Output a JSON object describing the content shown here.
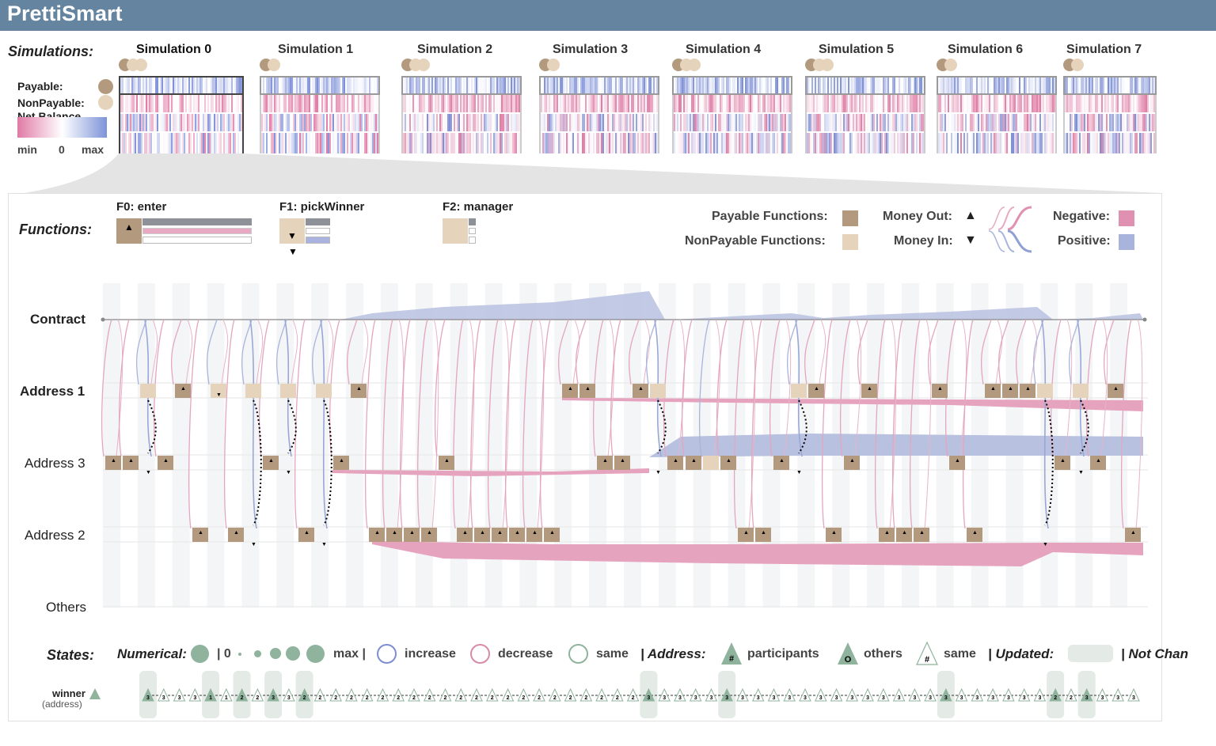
{
  "app": {
    "title": "PrettiSmart"
  },
  "simulations": {
    "heading": "Simulations:",
    "items": [
      {
        "label": "Simulation 0",
        "active": true
      },
      {
        "label": "Simulation 1",
        "active": false
      },
      {
        "label": "Simulation 2",
        "active": false
      },
      {
        "label": "Simulation 3",
        "active": false
      },
      {
        "label": "Simulation 4",
        "active": false
      },
      {
        "label": "Simulation 5",
        "active": false
      },
      {
        "label": "Simulation 6",
        "active": false
      },
      {
        "label": "Simulation 7",
        "active": false
      }
    ],
    "legend": {
      "payable": "Payable:",
      "nonpayable": "NonPayable:",
      "net_balance": "Net Balance",
      "min": "min",
      "zero": "0",
      "max": "max"
    }
  },
  "functions": {
    "heading": "Functions:",
    "items": [
      {
        "label": "F0: enter",
        "type": "payable",
        "money": "out"
      },
      {
        "label": "F1: pickWinner",
        "type": "nonpayable",
        "money": "in"
      },
      {
        "label": "F2: manager",
        "type": "nonpayable",
        "money": "none"
      }
    ],
    "legend": {
      "payable": "Payable Functions:",
      "nonpayable": "NonPayable Functions:",
      "money_out": "Money Out:",
      "money_in": "Money In:",
      "negative": "Negative:",
      "positive": "Positive:"
    }
  },
  "timeline": {
    "rows": [
      "Contract",
      "Address 1",
      "Address 3",
      "Address 2",
      "Others"
    ],
    "row_bold": [
      true,
      true,
      false,
      false,
      false
    ]
  },
  "states": {
    "heading": "States:",
    "numerical": "Numerical:",
    "zero": "| 0",
    "max": "max |",
    "increase": "increase",
    "decrease": "decrease",
    "same": "same",
    "address": "| Address:",
    "participants": "participants",
    "others": "others",
    "address_same": "same",
    "updated": "| Updated:",
    "not_changed": "| Not Chan",
    "var_name": "winner",
    "var_type": "(address)",
    "winner_values": [
      "3",
      "3",
      "3",
      "3",
      "1",
      "1",
      "2",
      "2",
      "3",
      "3",
      "2",
      "2",
      "2",
      "2",
      "2",
      "2",
      "2",
      "2",
      "2",
      "2",
      "2",
      "2",
      "2",
      "2",
      "2",
      "2",
      "2",
      "2",
      "2",
      "2",
      "2",
      "2",
      "3",
      "3",
      "3",
      "3",
      "3",
      "3",
      "3",
      "3",
      "3",
      "3",
      "3",
      "3",
      "3",
      "3",
      "3",
      "3",
      "3",
      "3",
      "3",
      "3",
      "3",
      "3",
      "3",
      "3",
      "3",
      "3",
      "2",
      "2",
      "3",
      "3",
      "3",
      "3"
    ]
  },
  "colors": {
    "header": "#6484a0",
    "payable": "#b39a7e",
    "nonpayable": "#e6d3bb",
    "negative": "#e090b0",
    "positive": "#a8b4dc",
    "state": "#8fb39c"
  }
}
